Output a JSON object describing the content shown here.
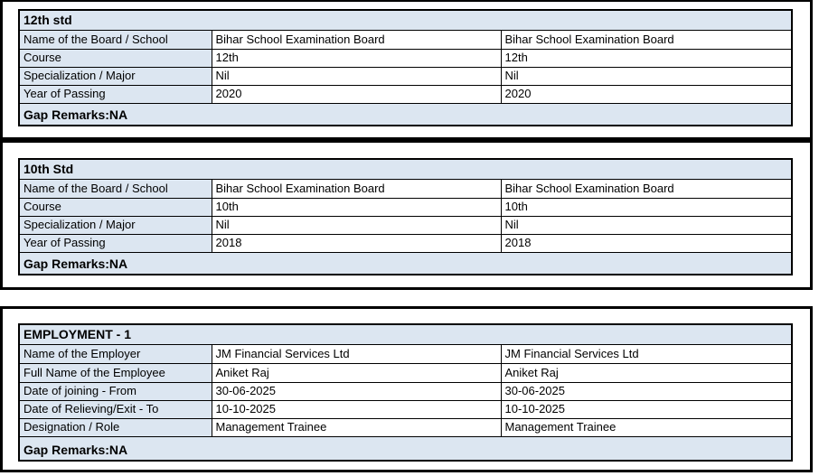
{
  "colors": {
    "header_bg": "#dce6f1",
    "border": "#000000",
    "text": "#000000",
    "page_bg": "#ffffff"
  },
  "sections": [
    {
      "title": "12th std",
      "gap_remarks": "Gap Remarks:NA",
      "rows": [
        {
          "label": "Name of the Board / School",
          "value1": "Bihar School Examination Board",
          "value2": "Bihar School Examination Board"
        },
        {
          "label": "Course",
          "value1": "12th",
          "value2": "12th"
        },
        {
          "label": "Specialization / Major",
          "value1": "Nil",
          "value2": "Nil"
        },
        {
          "label": "Year of Passing",
          "value1": "2020",
          "value2": "2020"
        }
      ]
    },
    {
      "title": "10th Std",
      "gap_remarks": "Gap Remarks:NA",
      "rows": [
        {
          "label": "Name of the Board / School",
          "value1": "Bihar School Examination Board",
          "value2": "Bihar School Examination Board"
        },
        {
          "label": "Course",
          "value1": "10th",
          "value2": "10th"
        },
        {
          "label": "Specialization / Major",
          "value1": "Nil",
          "value2": "Nil"
        },
        {
          "label": "Year of Passing",
          "value1": "2018",
          "value2": "2018"
        }
      ]
    },
    {
      "title": "EMPLOYMENT - 1",
      "gap_remarks": "Gap Remarks:NA",
      "rows": [
        {
          "label": "Name of the Employer",
          "value1": "JM Financial Services Ltd",
          "value2": "JM Financial Services Ltd"
        },
        {
          "label": "Full Name of the Employee",
          "value1": "Aniket Raj",
          "value2": "Aniket Raj"
        },
        {
          "label": "Date of joining - From",
          "value1": "30-06-2025",
          "value2": "30-06-2025"
        },
        {
          "label": "Date of Relieving/Exit - To",
          "value1": "10-10-2025",
          "value2": "10-10-2025"
        },
        {
          "label": "Designation / Role",
          "value1": "Management Trainee",
          "value2": "Management Trainee"
        }
      ]
    }
  ]
}
